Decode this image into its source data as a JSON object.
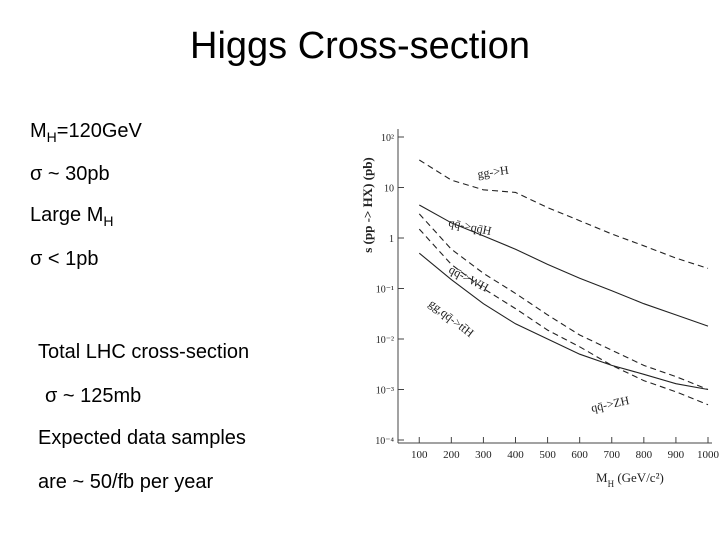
{
  "slide": {
    "title": "Higgs Cross-section",
    "items": [
      {
        "text": "M",
        "sub": "H",
        "rest": "=120GeV"
      },
      {
        "text": "σ ~ 30pb"
      },
      {
        "text": "Large M",
        "sub": "H"
      },
      {
        "text": "σ < 1pb"
      },
      {
        "text": "Total LHC cross-section"
      },
      {
        "text": "σ ~ 125mb"
      },
      {
        "text": "Expected data samples"
      },
      {
        "text": "are ~ 50/fb per year"
      }
    ]
  },
  "chart_data": {
    "type": "line",
    "y_label": "s (pp -> HX) (pb)",
    "x_label": {
      "text": "M",
      "sub": "H",
      "rest": " (GeV/c²)"
    },
    "log_y": true,
    "x": [
      100,
      200,
      300,
      400,
      500,
      600,
      700,
      800,
      900,
      1000
    ],
    "xlim": [
      40,
      1000
    ],
    "xticks": [
      100,
      200,
      300,
      400,
      500,
      600,
      700,
      800,
      900,
      1000
    ],
    "ylim": [
      0.0001,
      100
    ],
    "yticks": [
      {
        "value": 100,
        "label": "10²"
      },
      10,
      1,
      {
        "value": 0.1,
        "label": "10⁻¹"
      },
      {
        "value": 0.01,
        "label": "10⁻²"
      },
      {
        "value": 0.001,
        "label": "10⁻³"
      },
      {
        "value": 0.0001,
        "label": "10⁻⁴"
      }
    ],
    "series": [
      {
        "name": "gg->H",
        "color": "#222222",
        "dashed": true,
        "values": [
          35,
          14,
          9,
          8,
          4,
          2.2,
          1.2,
          0.7,
          0.4,
          0.25
        ]
      },
      {
        "name": "qq̄->qq̄H",
        "color": "#222222",
        "dashed": false,
        "values": [
          4.5,
          2,
          1.1,
          0.6,
          0.3,
          0.16,
          0.09,
          0.05,
          0.03,
          0.018
        ]
      },
      {
        "name": "qq̄->WH",
        "color": "#222222",
        "dashed": true,
        "values": [
          3,
          0.6,
          0.2,
          0.08,
          0.03,
          0.012,
          0.006,
          0.003,
          0.0018,
          0.001
        ]
      },
      {
        "name": "gg,qq̄->tt̄H",
        "color": "#222222",
        "dashed": false,
        "values": [
          0.5,
          0.15,
          0.05,
          0.02,
          0.01,
          0.005,
          0.003,
          0.002,
          0.0013,
          0.001
        ]
      },
      {
        "name": "qq̄->ZH",
        "color": "#222222",
        "dashed": true,
        "values": [
          1.5,
          0.3,
          0.1,
          0.04,
          0.015,
          0.007,
          0.003,
          0.0015,
          0.0009,
          0.0005
        ]
      }
    ]
  }
}
